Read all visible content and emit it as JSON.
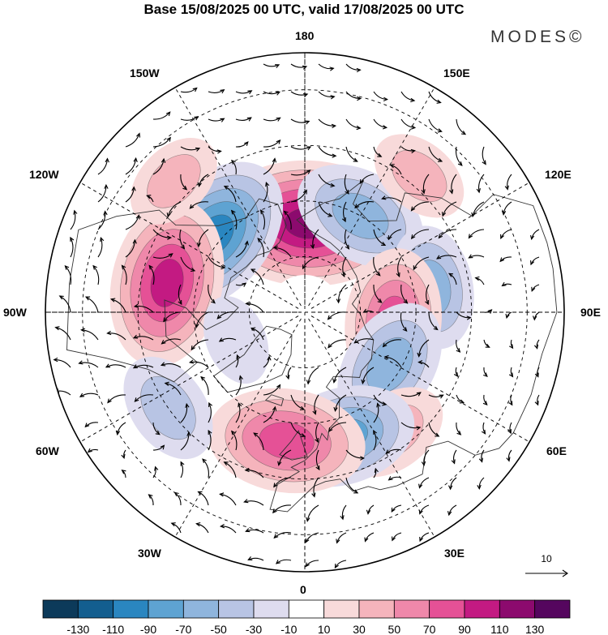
{
  "title": "Base 15/08/2025 00 UTC, valid 17/08/2025 00 UTC",
  "brand": "MODES©",
  "longitude_labels": {
    "top": "180",
    "bottom": "0",
    "left": "90W",
    "right": "90E",
    "upper_left_1": "150W",
    "upper_left_2": "120W",
    "upper_right_1": "150E",
    "upper_right_2": "120E",
    "lower_left_1": "60W",
    "lower_left_2": "30W",
    "lower_right_1": "60E",
    "lower_right_2": "30E"
  },
  "reference_vector": {
    "label": "10",
    "magnitude": 10
  },
  "colorbar": {
    "ticks": [
      "-130",
      "-110",
      "-90",
      "-70",
      "-50",
      "-30",
      "-10",
      "10",
      "30",
      "50",
      "70",
      "90",
      "110",
      "130"
    ],
    "colors": [
      "#0c3a5a",
      "#135e8f",
      "#2a86c0",
      "#5ea3d2",
      "#8fb5dd",
      "#b8c4e4",
      "#dedcef",
      "#ffffff",
      "#f8dada",
      "#f5b4bc",
      "#ef88aa",
      "#e55196",
      "#c31a82",
      "#8c0a6e",
      "#55065e"
    ]
  },
  "anomaly_centers": [
    {
      "lon": 178,
      "lat": 66,
      "value": 110
    },
    {
      "lon": -130,
      "lat": 58,
      "value": -90
    },
    {
      "lon": -102,
      "lat": 52,
      "value": 90
    },
    {
      "lon": 150,
      "lat": 60,
      "value": -60
    },
    {
      "lon": 101,
      "lat": 55,
      "value": -50
    },
    {
      "lon": 84,
      "lat": 66,
      "value": 70
    },
    {
      "lon": 58,
      "lat": 63,
      "value": -60
    },
    {
      "lon": 36,
      "lat": 50,
      "value": 40
    },
    {
      "lon": 17,
      "lat": 55,
      "value": -70
    },
    {
      "lon": -8,
      "lat": 55,
      "value": 80
    },
    {
      "lon": -55,
      "lat": 45,
      "value": -40
    },
    {
      "lon": 140,
      "lat": 42,
      "value": 30
    },
    {
      "lon": -135,
      "lat": 40,
      "value": 30
    },
    {
      "lon": -68,
      "lat": 70,
      "value": -20
    }
  ]
}
